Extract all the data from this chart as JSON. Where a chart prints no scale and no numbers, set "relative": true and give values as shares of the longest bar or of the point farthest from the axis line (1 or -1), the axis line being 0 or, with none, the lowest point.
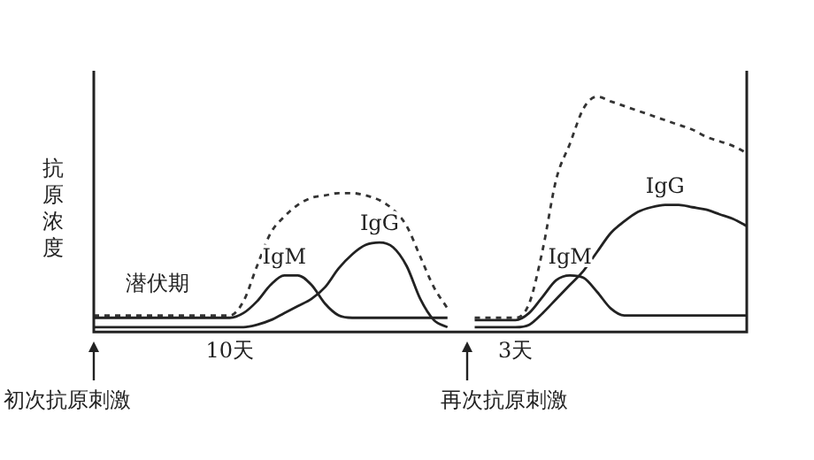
{
  "chart_data": {
    "type": "line",
    "relative": true,
    "ylabel": "抗原浓度",
    "grid": false,
    "legend": false,
    "marker": "none",
    "categories": [
      null,
      null,
      null,
      null,
      null,
      null,
      null,
      null,
      null,
      null,
      "10天",
      null,
      null,
      null,
      null,
      null,
      null,
      null,
      null,
      null,
      null,
      null,
      null,
      null,
      null,
      null,
      null,
      null,
      null,
      null,
      null,
      "3天",
      null,
      null,
      null,
      null,
      null,
      null,
      null,
      null,
      null,
      null,
      null,
      null,
      null,
      null,
      null,
      null,
      null
    ],
    "series": [
      {
        "color": "#333333",
        "line_style": "dashed",
        "values": [
          0.07,
          0.07,
          0.07,
          0.07,
          0.07,
          0.07,
          0.07,
          0.07,
          0.07,
          0.07,
          0.07,
          0.13,
          0.28,
          0.42,
          0.49,
          0.54,
          0.57,
          0.58,
          0.59,
          0.59,
          0.58,
          0.56,
          0.52,
          0.45,
          0.32,
          0.19,
          0.1,
          null,
          0.06,
          0.06,
          0.06,
          0.06,
          0.12,
          0.35,
          0.65,
          0.8,
          0.95,
          1,
          0.98,
          0.96,
          0.94,
          0.92,
          0.9,
          0.88,
          0.86,
          0.83,
          0.81,
          0.79,
          0.76
        ]
      },
      {
        "name": "IgM",
        "color": "#222222",
        "line_style": "solid",
        "values": [
          0.06,
          0.06,
          0.06,
          0.06,
          0.06,
          0.06,
          0.06,
          0.06,
          0.06,
          0.06,
          0.06,
          0.08,
          0.13,
          0.2,
          0.24,
          0.24,
          0.2,
          0.12,
          0.07,
          0.06,
          0.06,
          0.06,
          0.06,
          0.06,
          0.06,
          0.06,
          0.06,
          null,
          0.05,
          0.05,
          0.05,
          0.05,
          0.08,
          0.15,
          0.22,
          0.24,
          0.23,
          0.17,
          0.1,
          0.07,
          0.07,
          0.07,
          0.07,
          0.07,
          0.07,
          0.07,
          0.07,
          0.07,
          0.07
        ]
      },
      {
        "name": "IgG",
        "color": "#222222",
        "line_style": "solid",
        "values": [
          0.02,
          0.02,
          0.02,
          0.02,
          0.02,
          0.02,
          0.02,
          0.02,
          0.02,
          0.02,
          0.02,
          0.02,
          0.03,
          0.05,
          0.08,
          0.11,
          0.14,
          0.19,
          0.27,
          0.33,
          0.37,
          0.38,
          0.36,
          0.28,
          0.14,
          0.05,
          0.02,
          null,
          0.02,
          0.02,
          0.02,
          0.02,
          0.03,
          0.08,
          0.14,
          0.2,
          0.26,
          0.34,
          0.42,
          0.47,
          0.51,
          0.53,
          0.54,
          0.54,
          0.53,
          0.52,
          0.5,
          0.48,
          0.45
        ]
      }
    ],
    "annotations": [
      "潜伏期",
      "初次抗原刺激",
      "再次抗原刺激"
    ]
  }
}
